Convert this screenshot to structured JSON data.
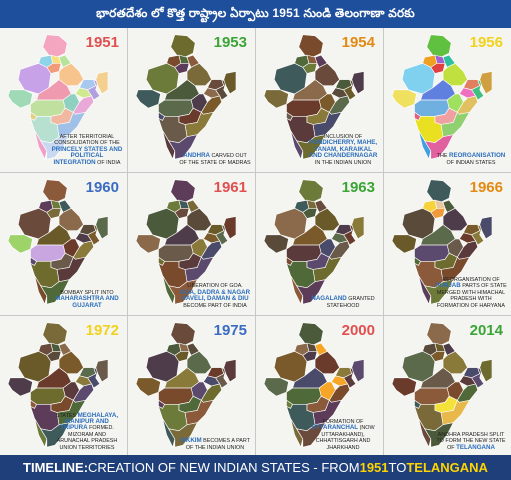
{
  "header": {
    "title": "భారతదేశం లో కొత్త రాష్ట్రాల ఏర్పాటు 1951 నుండి తెలంగాణా వరకు"
  },
  "footer": {
    "lead": "TIMELINE:",
    "text1": " CREATION OF NEW INDIAN STATES - FROM ",
    "year_from": "1951",
    "text2": " TO ",
    "state_to": "TELANGANA"
  },
  "panels": [
    {
      "year": "1951",
      "year_color": "#e05050",
      "mode": "pastel",
      "caption": {
        "pre": "AFTER TERRITORIAL CONSOLIDATION OF THE",
        "bold": "PRINCELY STATES AND POLITICAL INTEGRATION",
        "post": "OF INDIA"
      }
    },
    {
      "year": "1953",
      "year_color": "#3aa536",
      "mode": "dark",
      "caption": {
        "pre": "",
        "bold": "ANDHRA",
        "post": "CARVED OUT OF THE STATE OF MADRAS"
      }
    },
    {
      "year": "1954",
      "year_color": "#e38a12",
      "mode": "dark",
      "caption": {
        "pre": "INCLUSION OF",
        "bold": "PONDICHERRY, MAHE, YANAM, KARAIKAL AND CHANDERNAGAR",
        "post": "IN THE INDIAN UNION"
      }
    },
    {
      "year": "1956",
      "year_color": "#f1d21c",
      "mode": "bright",
      "caption": {
        "pre": "THE",
        "bold": "REORGANISATION",
        "post": "OF INDIAN STATES"
      }
    },
    {
      "year": "1960",
      "year_color": "#3b6cc4",
      "mode": "west",
      "caption": {
        "pre": "BOMBAY SPLIT INTO",
        "bold": "MAHARASHTRA AND GUJARAT",
        "post": ""
      }
    },
    {
      "year": "1961",
      "year_color": "#e05050",
      "mode": "dark",
      "caption": {
        "pre": "LIBERATION OF GOA.",
        "bold": "GOA, DADRA & NAGAR HAVELI, DAMAN & DIU",
        "post": "BECOME PART OF INDIA"
      }
    },
    {
      "year": "1963",
      "year_color": "#3aa536",
      "mode": "dark",
      "caption": {
        "pre": "",
        "bold": "NAGALAND",
        "post": "GRANTED STATEHOOD"
      }
    },
    {
      "year": "1966",
      "year_color": "#e38a12",
      "mode": "north",
      "caption": {
        "pre": "REORGANISATION OF",
        "bold": "PUNJAB",
        "post": "PARTS OF STATE MERGED WITH HIMACHAL PRADESH WITH FORMATION OF HARYANA"
      }
    },
    {
      "year": "1972",
      "year_color": "#f1d21c",
      "mode": "dark",
      "caption": {
        "pre": "STATES",
        "bold": "MEGHALAYA, MANIPUR AND TRIPURA",
        "post": "FORMED. MIZORAM AND ARUNACHAL PRADESH UNION TERRITORIES"
      }
    },
    {
      "year": "1975",
      "year_color": "#3b6cc4",
      "mode": "dark",
      "caption": {
        "pre": "",
        "bold": "SIKKIM",
        "post": "BECOMES A PART OF THE INDIAN UNION"
      }
    },
    {
      "year": "2000",
      "year_color": "#e05050",
      "mode": "y2000",
      "caption": {
        "pre": "FORMATION OF",
        "bold": "UTTARANCHAL",
        "post": "(NOW UTTARAKHAND), CHHATTISGARH AND JHARKHAND"
      }
    },
    {
      "year": "2014",
      "year_color": "#3aa536",
      "mode": "y2014",
      "caption": {
        "pre": "ANDHRA PRADESH SPLIT TO FORM THE NEW STATE OF",
        "bold": "TELANGANA",
        "post": ""
      }
    }
  ]
}
